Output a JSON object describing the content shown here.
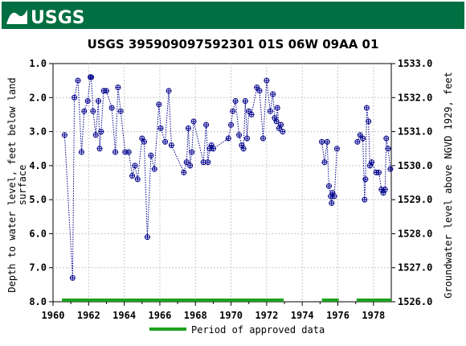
{
  "header": {
    "logo_text": "USGS",
    "brand_color": "#006f41"
  },
  "chart_data": {
    "type": "scatter",
    "title": "USGS 395909097592301 01S 06W 09AA  01",
    "ylabel_left": "Depth to water level, feet below land surface",
    "ylabel_left_lines": [
      "Depth to water level, feet below land",
      "surface"
    ],
    "ylabel_right": "Groundwater level above NGVD 1929, feet",
    "xlim": [
      1960,
      1979
    ],
    "ylim_left": [
      8.0,
      1.0
    ],
    "ylim_right": [
      1526.0,
      1533.0
    ],
    "x_ticks": [
      "1960",
      "1962",
      "1964",
      "1966",
      "1968",
      "1970",
      "1972",
      "1974",
      "1976",
      "1978"
    ],
    "y_ticks_left": [
      "1.0",
      "2.0",
      "3.0",
      "4.0",
      "5.0",
      "6.0",
      "7.0",
      "8.0"
    ],
    "y_ticks_right": [
      "1533.0",
      "1532.0",
      "1531.0",
      "1530.0",
      "1529.0",
      "1528.0",
      "1527.0",
      "1526.0"
    ],
    "grid": true,
    "point_color": "#00008b",
    "approved_color": "#1ea01e",
    "legend": {
      "label": "Period of approved data",
      "placement": "bottom"
    },
    "approved_periods": [
      [
        1960.5,
        1972.95
      ],
      [
        1975.1,
        1976.05
      ],
      [
        1977.05,
        1979.0
      ]
    ],
    "series": [
      {
        "points": [
          [
            1960.65,
            3.1
          ],
          [
            1961.1,
            7.3
          ],
          [
            1961.2,
            2.0
          ],
          [
            1961.4,
            1.5
          ],
          [
            1961.6,
            3.6
          ],
          [
            1961.75,
            2.4
          ],
          [
            1961.95,
            2.1
          ],
          [
            1962.1,
            1.4
          ],
          [
            1962.15,
            1.4
          ],
          [
            1962.25,
            2.4
          ],
          [
            1962.4,
            3.1
          ],
          [
            1962.55,
            2.1
          ],
          [
            1962.62,
            3.5
          ],
          [
            1962.7,
            3.0
          ],
          [
            1962.85,
            1.8
          ],
          [
            1963.0,
            1.8
          ],
          [
            1963.3,
            2.3
          ],
          [
            1963.5,
            3.6
          ],
          [
            1963.65,
            1.7
          ],
          [
            1963.8,
            2.4
          ],
          [
            1964.05,
            3.6
          ],
          [
            1964.25,
            3.6
          ],
          [
            1964.45,
            4.3
          ],
          [
            1964.6,
            4.0
          ],
          [
            1964.75,
            4.4
          ],
          [
            1965.0,
            3.2
          ],
          [
            1965.12,
            3.3
          ],
          [
            1965.3,
            6.1
          ],
          [
            1965.5,
            3.7
          ],
          [
            1965.7,
            4.1
          ],
          [
            1965.95,
            2.2
          ],
          [
            1966.05,
            2.9
          ],
          [
            1966.3,
            3.3
          ],
          [
            1966.5,
            1.8
          ],
          [
            1966.65,
            3.4
          ],
          [
            1967.35,
            4.2
          ],
          [
            1967.5,
            3.9
          ],
          [
            1967.6,
            2.9
          ],
          [
            1967.7,
            4.0
          ],
          [
            1967.8,
            3.6
          ],
          [
            1967.9,
            2.7
          ],
          [
            1968.45,
            3.9
          ],
          [
            1968.6,
            2.8
          ],
          [
            1968.7,
            3.9
          ],
          [
            1968.8,
            3.5
          ],
          [
            1968.9,
            3.4
          ],
          [
            1969.0,
            3.5
          ],
          [
            1969.85,
            3.2
          ],
          [
            1970.0,
            2.8
          ],
          [
            1970.1,
            2.4
          ],
          [
            1970.25,
            2.1
          ],
          [
            1970.45,
            3.1
          ],
          [
            1970.6,
            3.4
          ],
          [
            1970.7,
            3.5
          ],
          [
            1970.8,
            2.1
          ],
          [
            1970.9,
            3.2
          ],
          [
            1971.0,
            2.4
          ],
          [
            1971.15,
            2.5
          ],
          [
            1971.45,
            1.7
          ],
          [
            1971.6,
            1.8
          ],
          [
            1971.8,
            3.2
          ],
          [
            1972.0,
            1.5
          ],
          [
            1972.2,
            2.4
          ],
          [
            1972.35,
            1.9
          ],
          [
            1972.45,
            2.6
          ],
          [
            1972.55,
            2.7
          ],
          [
            1972.6,
            2.3
          ],
          [
            1972.7,
            2.9
          ],
          [
            1972.8,
            2.8
          ],
          [
            1972.9,
            3.0
          ]
        ]
      },
      {
        "points": [
          [
            1975.1,
            3.3
          ],
          [
            1975.25,
            3.9
          ],
          [
            1975.4,
            3.3
          ],
          [
            1975.5,
            4.6
          ],
          [
            1975.6,
            4.9
          ],
          [
            1975.65,
            5.1
          ],
          [
            1975.7,
            4.8
          ],
          [
            1975.8,
            4.9
          ],
          [
            1975.95,
            3.5
          ]
        ]
      },
      {
        "points": [
          [
            1977.1,
            3.3
          ],
          [
            1977.25,
            3.1
          ],
          [
            1977.4,
            3.2
          ],
          [
            1977.5,
            5.0
          ],
          [
            1977.55,
            4.4
          ],
          [
            1977.62,
            2.3
          ],
          [
            1977.72,
            2.7
          ],
          [
            1977.8,
            4.0
          ],
          [
            1977.9,
            3.9
          ],
          [
            1978.15,
            4.2
          ],
          [
            1978.3,
            4.2
          ],
          [
            1978.45,
            4.7
          ],
          [
            1978.55,
            4.8
          ],
          [
            1978.65,
            4.7
          ],
          [
            1978.72,
            3.2
          ],
          [
            1978.82,
            3.5
          ],
          [
            1978.95,
            4.1
          ]
        ]
      }
    ]
  }
}
